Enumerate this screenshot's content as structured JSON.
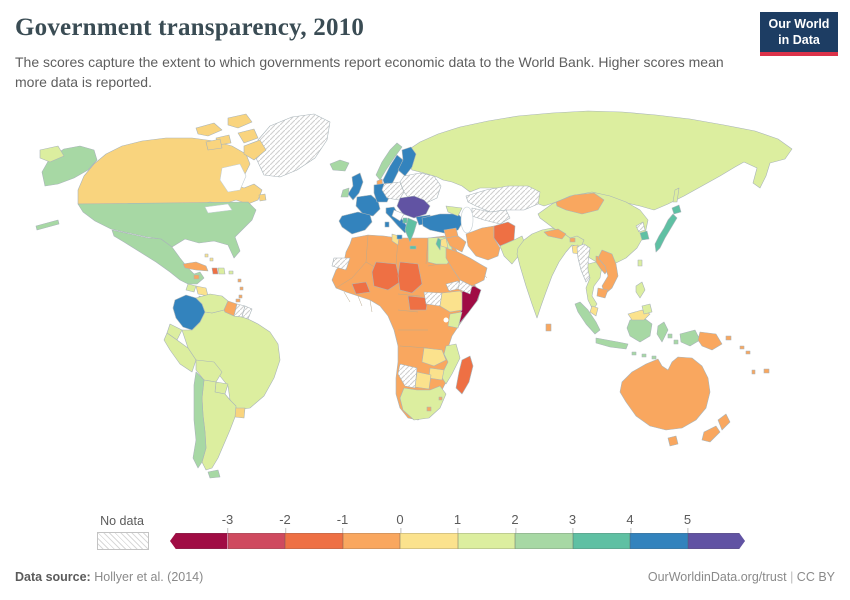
{
  "header": {
    "title": "Government transparency, 2010",
    "subtitle": "The scores capture the extent to which governments report economic data to the World Bank. Higher scores mean more data is reported.",
    "logo": {
      "line1": "Our World",
      "line2": "in Data",
      "bg_color": "#1d3d63",
      "accent_color": "#dc3249"
    }
  },
  "legend": {
    "no_data_label": "No data",
    "ticks": [
      "-3",
      "-2",
      "-1",
      "0",
      "1",
      "2",
      "3",
      "4",
      "5"
    ],
    "bins": [
      {
        "range": "< -3",
        "color": "#a00c44"
      },
      {
        "range": "-3 to -2",
        "color": "#cf4a5f"
      },
      {
        "range": "-2 to -1",
        "color": "#ee7044"
      },
      {
        "range": "-1 to 0",
        "color": "#f9a75f"
      },
      {
        "range": "0 to 1",
        "color": "#fbe28d"
      },
      {
        "range": "1 to 2",
        "color": "#dcee9f"
      },
      {
        "range": "2 to 3",
        "color": "#a7d8a4"
      },
      {
        "range": "3 to 4",
        "color": "#5fc0a3"
      },
      {
        "range": "4 to 5",
        "color": "#3383bd"
      },
      {
        "range": "> 5",
        "color": "#6153a3"
      }
    ]
  },
  "map": {
    "ocean_color": "#ffffff",
    "border_color": "#a9b4b9",
    "palette": {
      "m3": "#a00c44",
      "m3m2": "#cf4a5f",
      "m2m1": "#ee7044",
      "m1z": "#f9a75f",
      "z1warm": "#f9d47e",
      "z1": "#fbe28d",
      "b12": "#dcee9f",
      "b23": "#a7d8a4",
      "b34": "#5fc0a3",
      "b45": "#3383bd",
      "b5p": "#6153a3",
      "nodata": "HATCH",
      "none": "#ffffff"
    },
    "regions": {
      "greenland": "nodata",
      "canada": "z1warm",
      "canada-islands": "z1warm",
      "alaska": "b23",
      "aleutians": "b23",
      "chukotka": "b12",
      "usa": "b23",
      "mexico": "b23",
      "guatemala": "b12",
      "honduras-nicaragua": "z1",
      "costa-rica-panama": "b23",
      "cuba": "m1z",
      "jamaica": "m1z",
      "haiti": "m2m1",
      "dominican-republic": "b12",
      "puerto-rico": "b12",
      "bahamas": "z1",
      "lesser-antilles": "m1z",
      "trinidad": "m1z",
      "colombia": "b45",
      "venezuela": "b12",
      "guyana": "m1z",
      "suriname": "nodata",
      "french-guiana": "nodata",
      "ecuador": "b12",
      "peru": "b12",
      "brazil": "b12",
      "bolivia": "b12",
      "paraguay": "b12",
      "uruguay": "z1warm",
      "argentina": "b12",
      "chile": "b23",
      "tierra-del-fuego": "b23",
      "iceland": "b23",
      "ireland": "b23",
      "uk": "b45",
      "norway": "b23",
      "sweden": "b45",
      "finland": "b45",
      "denmark": "m1z",
      "france": "b45",
      "germany": "b45",
      "iberia": "b45",
      "italy": "b45",
      "sicily": "b45",
      "sardinia": "b45",
      "poland-czech": "nodata",
      "baltics": "nodata",
      "belarus-ukraine": "nodata",
      "central-europe": "b5p",
      "croatia-bosnia": "none",
      "bulgaria": "b45",
      "greece": "b34",
      "crete": "b34",
      "albania": "b34",
      "turkey": "b45",
      "caucasus": "b12",
      "russia": "b12",
      "sakhalin": "b12",
      "kazakhstan": "nodata",
      "central-asia": "nodata",
      "syria": "m1z",
      "iraq": "m1z",
      "jordan": "z1",
      "israel": "b34",
      "saudi-arabia": "m1z",
      "yemen": "nodata",
      "iran": "m1z",
      "afghanistan": "m2m1",
      "pakistan": "b12",
      "india": "b12",
      "nepal": "m1z",
      "bhutan": "m1z",
      "bangladesh": "z1",
      "sri-lanka": "m1z",
      "china": "b12",
      "taiwan": "b12",
      "mongolia": "m1z",
      "north-korea": "nodata",
      "south-korea": "b34",
      "japan": "b34",
      "hokkaido": "b34",
      "myanmar": "nodata",
      "thailand": "b12",
      "laos": "m1z",
      "vietnam": "m1z",
      "cambodia": "m1z",
      "malaysia-peninsula": "z1",
      "malaysia-east": "z1",
      "sumatra": "b23",
      "java": "b23",
      "borneo": "b23",
      "sulawesi": "b23",
      "lesser-sunda": "b23",
      "moluccas": "b23",
      "west-papua": "b23",
      "philippines-luzon": "b12",
      "philippines-mindanao": "b12",
      "papua-new-guinea": "m1z",
      "new-britain": "m1z",
      "solomon": "m1z",
      "vanuatu": "m1z",
      "fiji": "m1z",
      "australia": "m1z",
      "tasmania": "m1z",
      "new-zealand-north": "m1z",
      "new-zealand-south": "m1z",
      "africa-base": "m1z",
      "western-sahara": "nodata",
      "tunisia": "z1",
      "egypt": "b12",
      "burkina-faso": "m2m1",
      "niger": "m2m1",
      "chad": "m2m1",
      "central-african-republic": "m2m1",
      "eritrea": "nodata",
      "south-sudan": "nodata",
      "ethiopia": "z1",
      "somalia": "m3",
      "kenya": "b12",
      "zambia": "z1",
      "mozambique": "b12",
      "zimbabwe": "z1",
      "botswana": "z1",
      "namibia": "nodata",
      "south-africa": "b12",
      "lesotho": "m1z",
      "swaziland": "m1z",
      "madagascar": "m2m1"
    }
  },
  "chart_data": {
    "type": "choropleth-map",
    "title": "Government transparency, 2010",
    "value_label": "Transparency score",
    "scale_ticks": [
      -3,
      -2,
      -1,
      0,
      1,
      2,
      3,
      4,
      5
    ],
    "regions": [
      {
        "name": "United States",
        "value_band": "2 to 3"
      },
      {
        "name": "Canada",
        "value_band": "0 to 1"
      },
      {
        "name": "Mexico",
        "value_band": "2 to 3"
      },
      {
        "name": "Greenland",
        "value_band": "No data"
      },
      {
        "name": "Colombia",
        "value_band": "4 to 5"
      },
      {
        "name": "Brazil",
        "value_band": "1 to 2"
      },
      {
        "name": "Chile",
        "value_band": "2 to 3"
      },
      {
        "name": "Uruguay",
        "value_band": "0 to 1"
      },
      {
        "name": "Suriname",
        "value_band": "No data"
      },
      {
        "name": "Guyana",
        "value_band": "-1 to 0"
      },
      {
        "name": "United Kingdom",
        "value_band": "4 to 5"
      },
      {
        "name": "France",
        "value_band": "4 to 5"
      },
      {
        "name": "Germany",
        "value_band": "4 to 5"
      },
      {
        "name": "Spain",
        "value_band": "4 to 5"
      },
      {
        "name": "Italy",
        "value_band": "4 to 5"
      },
      {
        "name": "Sweden",
        "value_band": "4 to 5"
      },
      {
        "name": "Finland",
        "value_band": "4 to 5"
      },
      {
        "name": "Norway",
        "value_band": "2 to 3"
      },
      {
        "name": "Ireland",
        "value_band": "2 to 3"
      },
      {
        "name": "Denmark",
        "value_band": "-1 to 0"
      },
      {
        "name": "Austria / Hungary region",
        "value_band": "> 5"
      },
      {
        "name": "Poland / Ukraine / Belarus / Baltics",
        "value_band": "No data"
      },
      {
        "name": "Greece",
        "value_band": "3 to 4"
      },
      {
        "name": "Bulgaria",
        "value_band": "4 to 5"
      },
      {
        "name": "Turkey",
        "value_band": "4 to 5"
      },
      {
        "name": "Russia",
        "value_band": "1 to 2"
      },
      {
        "name": "Kazakhstan",
        "value_band": "No data"
      },
      {
        "name": "China",
        "value_band": "1 to 2"
      },
      {
        "name": "Mongolia",
        "value_band": "-1 to 0"
      },
      {
        "name": "Japan",
        "value_band": "3 to 4"
      },
      {
        "name": "South Korea",
        "value_band": "3 to 4"
      },
      {
        "name": "North Korea",
        "value_band": "No data"
      },
      {
        "name": "India",
        "value_band": "1 to 2"
      },
      {
        "name": "Pakistan",
        "value_band": "1 to 2"
      },
      {
        "name": "Afghanistan",
        "value_band": "-2 to -1"
      },
      {
        "name": "Iran",
        "value_band": "-1 to 0"
      },
      {
        "name": "Saudi Arabia",
        "value_band": "-1 to 0"
      },
      {
        "name": "Yemen",
        "value_band": "No data"
      },
      {
        "name": "Israel",
        "value_band": "3 to 4"
      },
      {
        "name": "Myanmar",
        "value_band": "No data"
      },
      {
        "name": "Thailand",
        "value_band": "1 to 2"
      },
      {
        "name": "Vietnam",
        "value_band": "-1 to 0"
      },
      {
        "name": "Indonesia",
        "value_band": "2 to 3"
      },
      {
        "name": "Malaysia",
        "value_band": "0 to 1"
      },
      {
        "name": "Philippines",
        "value_band": "1 to 2"
      },
      {
        "name": "Australia",
        "value_band": "-1 to 0"
      },
      {
        "name": "New Zealand",
        "value_band": "-1 to 0"
      },
      {
        "name": "Papua New Guinea",
        "value_band": "-1 to 0"
      },
      {
        "name": "Morocco / Algeria / Libya",
        "value_band": "-1 to 0"
      },
      {
        "name": "Tunisia",
        "value_band": "0 to 1"
      },
      {
        "name": "Egypt",
        "value_band": "1 to 2"
      },
      {
        "name": "Niger",
        "value_band": "-2 to -1"
      },
      {
        "name": "Chad",
        "value_band": "-2 to -1"
      },
      {
        "name": "Burkina Faso",
        "value_band": "-2 to -1"
      },
      {
        "name": "Central African Republic",
        "value_band": "-2 to -1"
      },
      {
        "name": "Somalia",
        "value_band": "< -3"
      },
      {
        "name": "Ethiopia",
        "value_band": "0 to 1"
      },
      {
        "name": "Kenya",
        "value_band": "1 to 2"
      },
      {
        "name": "South Sudan",
        "value_band": "No data"
      },
      {
        "name": "Eritrea",
        "value_band": "No data"
      },
      {
        "name": "Namibia",
        "value_band": "No data"
      },
      {
        "name": "Zambia",
        "value_band": "0 to 1"
      },
      {
        "name": "Zimbabwe",
        "value_band": "0 to 1"
      },
      {
        "name": "Botswana",
        "value_band": "0 to 1"
      },
      {
        "name": "Mozambique",
        "value_band": "1 to 2"
      },
      {
        "name": "South Africa",
        "value_band": "1 to 2"
      },
      {
        "name": "Madagascar",
        "value_band": "-2 to -1"
      }
    ]
  },
  "footer": {
    "datasource_label": "Data source:",
    "datasource_value": "Hollyer et al. (2014)",
    "link": "OurWorldinData.org/trust",
    "separator": "|",
    "license": "CC BY"
  }
}
